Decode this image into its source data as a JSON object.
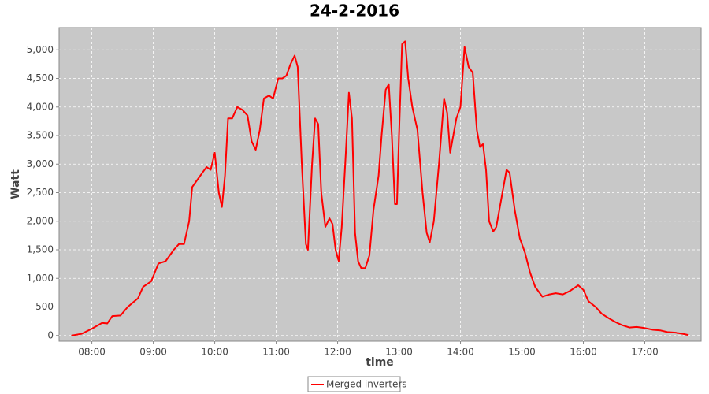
{
  "chart_data": {
    "type": "line",
    "title": "24-2-2016",
    "x_label": "time",
    "y_label": "Watt",
    "x": [
      "07:40",
      "07:50",
      "08:00",
      "08:10",
      "08:15",
      "08:20",
      "08:28",
      "08:35",
      "08:45",
      "08:50",
      "08:58",
      "09:05",
      "09:12",
      "09:20",
      "09:25",
      "09:30",
      "09:35",
      "09:38",
      "09:42",
      "09:48",
      "09:52",
      "09:56",
      "10:00",
      "10:04",
      "10:07",
      "10:10",
      "10:13",
      "10:17",
      "10:22",
      "10:27",
      "10:32",
      "10:36",
      "10:40",
      "10:44",
      "10:48",
      "10:53",
      "10:57",
      "11:02",
      "11:06",
      "11:10",
      "11:14",
      "11:18",
      "11:21",
      "11:25",
      "11:29",
      "11:31",
      "11:35",
      "11:38",
      "11:41",
      "11:44",
      "11:48",
      "11:52",
      "11:55",
      "11:58",
      "12:01",
      "12:04",
      "12:08",
      "12:11",
      "12:14",
      "12:17",
      "12:20",
      "12:23",
      "12:27",
      "12:31",
      "12:35",
      "12:40",
      "12:43",
      "12:47",
      "12:50",
      "12:53",
      "12:56",
      "12:58",
      "13:00",
      "13:03",
      "13:06",
      "13:09",
      "13:13",
      "13:18",
      "13:23",
      "13:27",
      "13:30",
      "13:34",
      "13:39",
      "13:44",
      "13:47",
      "13:50",
      "13:53",
      "13:56",
      "14:00",
      "14:04",
      "14:08",
      "14:12",
      "14:16",
      "14:19",
      "14:22",
      "14:25",
      "14:28",
      "14:32",
      "14:35",
      "14:40",
      "14:45",
      "14:48",
      "14:53",
      "14:58",
      "15:03",
      "15:08",
      "15:13",
      "15:20",
      "15:27",
      "15:33",
      "15:40",
      "15:47",
      "15:55",
      "16:00",
      "16:05",
      "16:12",
      "16:18",
      "16:25",
      "16:32",
      "16:38",
      "16:45",
      "16:52",
      "17:00",
      "17:08",
      "17:15",
      "17:22",
      "17:30",
      "17:37",
      "17:42"
    ],
    "series": [
      {
        "name": "Merged inverters",
        "color": "#ff0000",
        "values": [
          0,
          30,
          120,
          220,
          210,
          340,
          350,
          500,
          650,
          850,
          950,
          1260,
          1300,
          1500,
          1600,
          1600,
          2000,
          2600,
          2700,
          2850,
          2950,
          2900,
          3200,
          2500,
          2250,
          2800,
          3800,
          3800,
          4000,
          3950,
          3850,
          3400,
          3250,
          3600,
          4150,
          4200,
          4150,
          4500,
          4500,
          4550,
          4750,
          4900,
          4700,
          3000,
          1600,
          1500,
          3000,
          3800,
          3700,
          2500,
          1900,
          2050,
          1950,
          1500,
          1300,
          1900,
          3200,
          4250,
          3800,
          1800,
          1300,
          1180,
          1180,
          1400,
          2200,
          2800,
          3500,
          4300,
          4400,
          3500,
          2300,
          2300,
          3500,
          5100,
          5150,
          4500,
          4000,
          3600,
          2500,
          1800,
          1630,
          2000,
          3000,
          4150,
          3900,
          3200,
          3500,
          3800,
          4000,
          5050,
          4700,
          4600,
          3600,
          3300,
          3350,
          2900,
          2000,
          1820,
          1900,
          2400,
          2900,
          2850,
          2200,
          1700,
          1450,
          1100,
          850,
          680,
          720,
          740,
          720,
          780,
          880,
          800,
          600,
          500,
          380,
          300,
          230,
          180,
          140,
          150,
          130,
          100,
          90,
          60,
          50,
          30,
          10
        ]
      }
    ],
    "xlim": [
      "07:28",
      "17:55"
    ],
    "xticks": [
      "08:00",
      "09:00",
      "10:00",
      "11:00",
      "12:00",
      "13:00",
      "14:00",
      "15:00",
      "16:00",
      "17:00"
    ],
    "ylim": [
      -100,
      5390
    ],
    "yticks": [
      0,
      500,
      {
        "value": 1000,
        "label": "1,000"
      },
      {
        "value": 1500,
        "label": "1,500"
      },
      {
        "value": 2000,
        "label": "2,000"
      },
      {
        "value": 2500,
        "label": "2,500"
      },
      {
        "value": 3000,
        "label": "3,000"
      },
      {
        "value": 3500,
        "label": "3,500"
      },
      {
        "value": 4000,
        "label": "4,000"
      },
      {
        "value": 4500,
        "label": "4,500"
      },
      {
        "value": 5000,
        "label": "5,000"
      }
    ],
    "grid": true,
    "legend": "bottom"
  }
}
